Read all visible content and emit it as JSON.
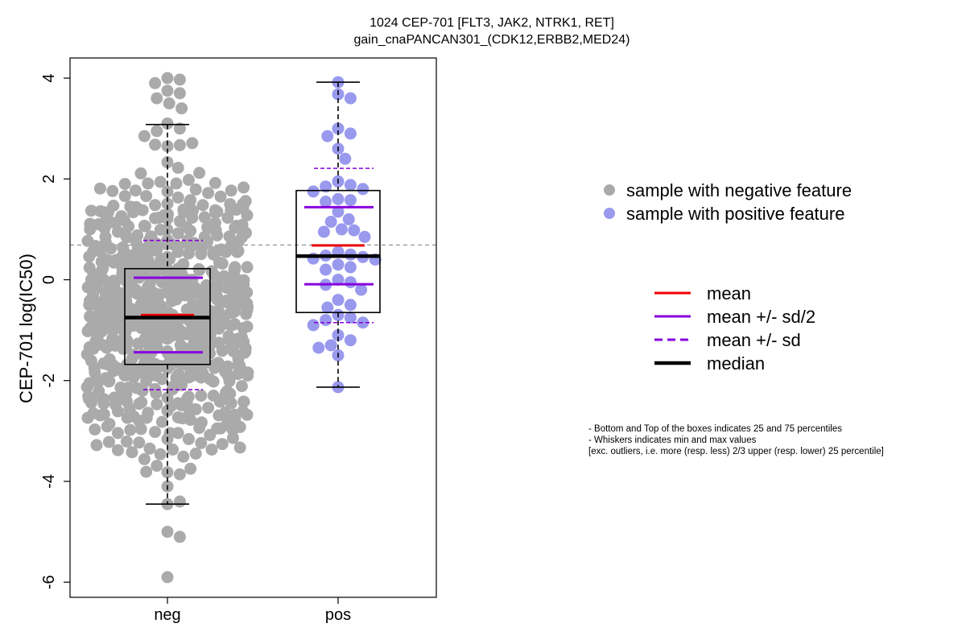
{
  "chart_data": {
    "type": "box-beeswarm",
    "title_line1": "1024 CEP-701 [FLT3, JAK2, NTRK1, RET]",
    "title_line2": "gain_cnaPANCAN301_(CDK12,ERBB2,MED24)",
    "ylabel": "CEP-701 log(IC50)",
    "ylim": [
      -6.3,
      4.4
    ],
    "yticks": [
      -6,
      -4,
      -2,
      0,
      2,
      4
    ],
    "ytick_labels": [
      "-6",
      "-4",
      "-2",
      "0",
      "2",
      "4"
    ],
    "reference_line": 0.69,
    "categories": [
      "neg",
      "pos"
    ],
    "groups": [
      {
        "name": "neg",
        "point_color": "#AAAAAA",
        "n_points": 720,
        "box": {
          "q1": -1.68,
          "median": -0.75,
          "q3": 0.22,
          "whisker_low": -4.45,
          "whisker_high": 3.08
        },
        "mean": -0.7,
        "mean_minus_half_sd": -1.44,
        "mean_plus_half_sd": 0.04,
        "mean_minus_sd": -2.18,
        "mean_plus_sd": 0.78,
        "highlight_points": [
          4.0,
          3.97,
          3.9,
          3.75,
          3.7,
          3.6,
          3.5,
          3.4,
          3.1,
          3.0,
          2.95,
          2.85,
          -4.1,
          -4.45,
          -4.4,
          -5.0,
          -5.1,
          -5.9
        ]
      },
      {
        "name": "pos",
        "point_color": "#9999EE",
        "box": {
          "q1": -0.65,
          "median": 0.47,
          "q3": 1.77,
          "whisker_low": -2.13,
          "whisker_high": 3.92
        },
        "mean": 0.68,
        "mean_minus_half_sd": -0.09,
        "mean_plus_half_sd": 1.44,
        "mean_minus_sd": -0.85,
        "mean_plus_sd": 2.21,
        "values": [
          3.92,
          3.68,
          3.6,
          3.0,
          2.9,
          2.85,
          2.6,
          2.4,
          1.95,
          1.88,
          1.85,
          1.8,
          1.75,
          1.6,
          1.58,
          1.55,
          1.35,
          1.2,
          1.15,
          1.0,
          0.98,
          0.95,
          0.85,
          0.55,
          0.5,
          0.48,
          0.45,
          0.42,
          0.4,
          0.3,
          0.25,
          0.2,
          0.0,
          -0.05,
          -0.1,
          -0.2,
          -0.4,
          -0.5,
          -0.55,
          -0.7,
          -0.75,
          -0.8,
          -0.85,
          -0.9,
          -1.1,
          -1.2,
          -1.3,
          -1.35,
          -1.5,
          -2.13
        ]
      }
    ],
    "legend_points": [
      {
        "label": "sample with negative feature",
        "color": "#AAAAAA"
      },
      {
        "label": "sample with positive feature",
        "color": "#9999EE"
      }
    ],
    "legend_lines": [
      {
        "label": "mean",
        "color": "#EE0000",
        "style": "solid"
      },
      {
        "label": "mean +/- sd/2",
        "color": "#8800DD",
        "style": "solid"
      },
      {
        "label": "mean +/- sd",
        "color": "#8800DD",
        "style": "dashed"
      },
      {
        "label": "median",
        "color": "#000000",
        "style": "bold"
      }
    ],
    "notes": [
      "- Bottom and Top of the boxes indicates 25 and 75 percentiles",
      "- Whiskers indicates min and max values",
      "[exc. outliers, i.e. more (resp. less) 2/3 upper (resp. lower) 25 percentile]"
    ]
  }
}
